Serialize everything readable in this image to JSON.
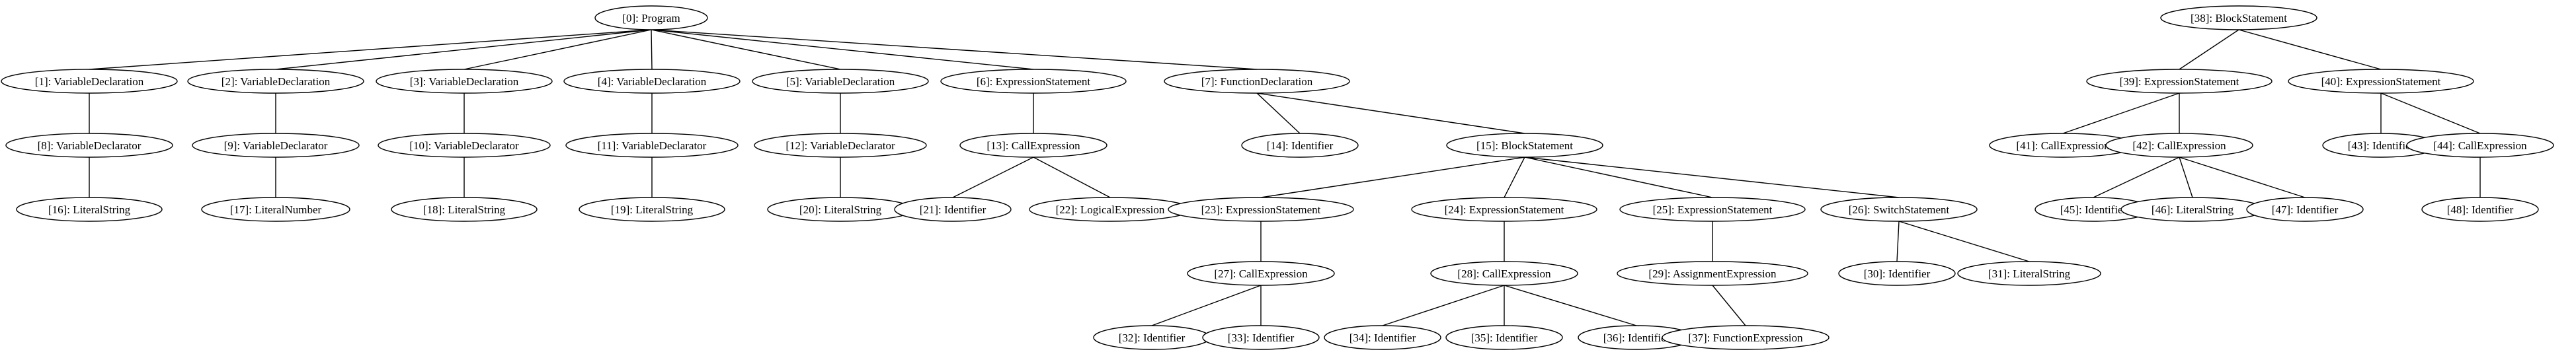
{
  "diagram": {
    "nodes": [
      {
        "id": 0,
        "label": "[0]: Program"
      },
      {
        "id": 1,
        "label": "[1]: VariableDeclaration"
      },
      {
        "id": 2,
        "label": "[2]: VariableDeclaration"
      },
      {
        "id": 3,
        "label": "[3]: VariableDeclaration"
      },
      {
        "id": 4,
        "label": "[4]: VariableDeclaration"
      },
      {
        "id": 5,
        "label": "[5]: VariableDeclaration"
      },
      {
        "id": 6,
        "label": "[6]: ExpressionStatement"
      },
      {
        "id": 7,
        "label": "[7]: FunctionDeclaration"
      },
      {
        "id": 8,
        "label": "[8]: VariableDeclarator"
      },
      {
        "id": 9,
        "label": "[9]: VariableDeclarator"
      },
      {
        "id": 10,
        "label": "[10]: VariableDeclarator"
      },
      {
        "id": 11,
        "label": "[11]: VariableDeclarator"
      },
      {
        "id": 12,
        "label": "[12]: VariableDeclarator"
      },
      {
        "id": 13,
        "label": "[13]: CallExpression"
      },
      {
        "id": 14,
        "label": "[14]: Identifier"
      },
      {
        "id": 15,
        "label": "[15]: BlockStatement"
      },
      {
        "id": 16,
        "label": "[16]: LiteralString"
      },
      {
        "id": 17,
        "label": "[17]: LiteralNumber"
      },
      {
        "id": 18,
        "label": "[18]: LiteralString"
      },
      {
        "id": 19,
        "label": "[19]: LiteralString"
      },
      {
        "id": 20,
        "label": "[20]: LiteralString"
      },
      {
        "id": 21,
        "label": "[21]: Identifier"
      },
      {
        "id": 22,
        "label": "[22]: LogicalExpression"
      },
      {
        "id": 23,
        "label": "[23]: ExpressionStatement"
      },
      {
        "id": 24,
        "label": "[24]: ExpressionStatement"
      },
      {
        "id": 25,
        "label": "[25]: ExpressionStatement"
      },
      {
        "id": 26,
        "label": "[26]: SwitchStatement"
      },
      {
        "id": 27,
        "label": "[27]: CallExpression"
      },
      {
        "id": 28,
        "label": "[28]: CallExpression"
      },
      {
        "id": 29,
        "label": "[29]: AssignmentExpression"
      },
      {
        "id": 30,
        "label": "[30]: Identifier"
      },
      {
        "id": 31,
        "label": "[31]: LiteralString"
      },
      {
        "id": 32,
        "label": "[32]: Identifier"
      },
      {
        "id": 33,
        "label": "[33]: Identifier"
      },
      {
        "id": 34,
        "label": "[34]: Identifier"
      },
      {
        "id": 35,
        "label": "[35]: Identifier"
      },
      {
        "id": 36,
        "label": "[36]: Identifier"
      },
      {
        "id": 37,
        "label": "[37]: FunctionExpression"
      },
      {
        "id": 38,
        "label": "[38]: BlockStatement"
      },
      {
        "id": 39,
        "label": "[39]: ExpressionStatement"
      },
      {
        "id": 40,
        "label": "[40]: ExpressionStatement"
      },
      {
        "id": 41,
        "label": "[41]: CallExpression"
      },
      {
        "id": 42,
        "label": "[42]: CallExpression"
      },
      {
        "id": 43,
        "label": "[43]: Identifier"
      },
      {
        "id": 44,
        "label": "[44]: CallExpression"
      },
      {
        "id": 45,
        "label": "[45]: Identifier"
      },
      {
        "id": 46,
        "label": "[46]: LiteralString"
      },
      {
        "id": 47,
        "label": "[47]: Identifier"
      },
      {
        "id": 48,
        "label": "[48]: Identifier"
      }
    ],
    "edges": [
      [
        0,
        1
      ],
      [
        0,
        2
      ],
      [
        0,
        3
      ],
      [
        0,
        4
      ],
      [
        0,
        5
      ],
      [
        0,
        6
      ],
      [
        0,
        7
      ],
      [
        1,
        8
      ],
      [
        2,
        9
      ],
      [
        3,
        10
      ],
      [
        4,
        11
      ],
      [
        5,
        12
      ],
      [
        6,
        13
      ],
      [
        7,
        14
      ],
      [
        7,
        15
      ],
      [
        8,
        16
      ],
      [
        9,
        17
      ],
      [
        10,
        18
      ],
      [
        11,
        19
      ],
      [
        12,
        20
      ],
      [
        13,
        21
      ],
      [
        13,
        22
      ],
      [
        15,
        23
      ],
      [
        15,
        24
      ],
      [
        15,
        25
      ],
      [
        15,
        26
      ],
      [
        23,
        27
      ],
      [
        24,
        28
      ],
      [
        25,
        29
      ],
      [
        26,
        30
      ],
      [
        26,
        31
      ],
      [
        27,
        32
      ],
      [
        27,
        33
      ],
      [
        28,
        34
      ],
      [
        28,
        35
      ],
      [
        28,
        36
      ],
      [
        29,
        37
      ],
      [
        38,
        39
      ],
      [
        38,
        40
      ],
      [
        39,
        41
      ],
      [
        39,
        42
      ],
      [
        40,
        43
      ],
      [
        40,
        44
      ],
      [
        42,
        45
      ],
      [
        42,
        46
      ],
      [
        42,
        47
      ],
      [
        44,
        48
      ]
    ]
  }
}
